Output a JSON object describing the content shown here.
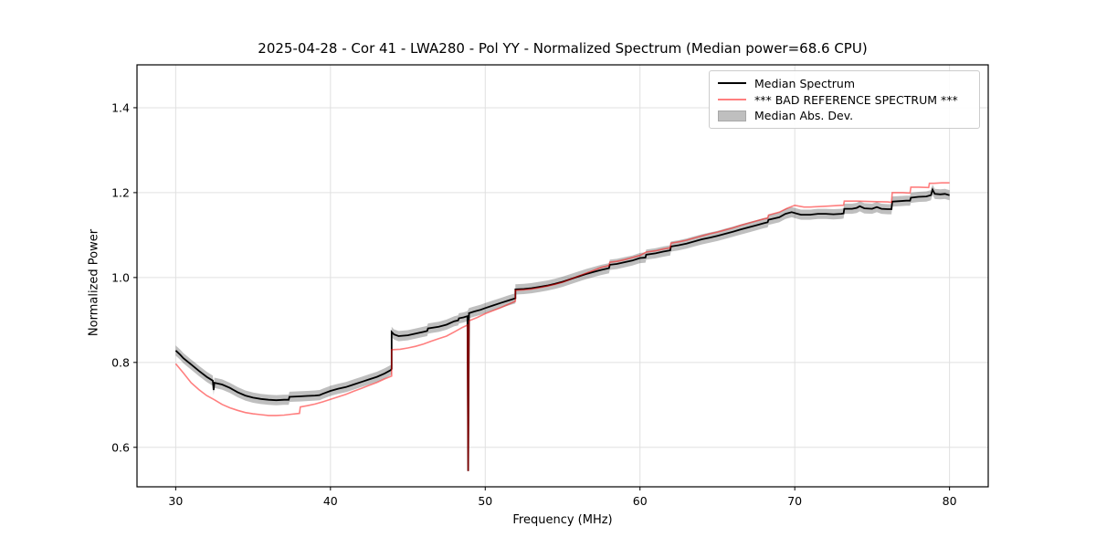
{
  "chart_data": {
    "type": "line",
    "title": "2025-04-28 - Cor 41 - LWA280 - Pol YY - Normalized Spectrum (Median power=68.6 CPU)",
    "xlabel": "Frequency (MHz)",
    "ylabel": "Normalized Power",
    "xlim": [
      27.5,
      82.5
    ],
    "ylim": [
      0.507,
      1.501
    ],
    "grid": true,
    "grid_color": "#e0e0e0",
    "spine_color": "#000000",
    "xticks": [
      {
        "value": 30,
        "label": "30"
      },
      {
        "value": 40,
        "label": "40"
      },
      {
        "value": 50,
        "label": "50"
      },
      {
        "value": 60,
        "label": "60"
      },
      {
        "value": 70,
        "label": "70"
      },
      {
        "value": 80,
        "label": "80"
      }
    ],
    "yticks": [
      {
        "value": 0.6,
        "label": "0.6"
      },
      {
        "value": 0.8,
        "label": "0.8"
      },
      {
        "value": 1.0,
        "label": "1.0"
      },
      {
        "value": 1.2,
        "label": "1.2"
      },
      {
        "value": 1.4,
        "label": "1.4"
      }
    ],
    "legend": {
      "position": "upper right",
      "entries": [
        {
          "label": "Median Spectrum",
          "swatch": "line",
          "color": "#000000"
        },
        {
          "label": "*** BAD REFERENCE SPECTRUM ***",
          "swatch": "line",
          "color": "rgba(255,0,0,0.5)"
        },
        {
          "label": "Median Abs. Dev.",
          "swatch": "patch",
          "color": "rgba(0,0,0,0.25)",
          "border_color": "#a8a8a8"
        }
      ]
    },
    "band": {
      "name": "Median Abs. Dev.",
      "follows": "Median Spectrum",
      "half_width": 0.012,
      "color": "#000000",
      "opacity": 0.25,
      "exclude_below": 0.6
    },
    "spike": {
      "frequency_mhz": 48.9,
      "min_value": 0.544
    },
    "series": [
      {
        "name": "Median Spectrum",
        "color": "#000000",
        "opacity": 1,
        "linewidth": 1.8,
        "points": [
          [
            30.0,
            0.828
          ],
          [
            30.3,
            0.818
          ],
          [
            30.5,
            0.81
          ],
          [
            31.0,
            0.795
          ],
          [
            31.5,
            0.78
          ],
          [
            32.0,
            0.766
          ],
          [
            32.4,
            0.757
          ],
          [
            32.45,
            0.735
          ],
          [
            32.5,
            0.752
          ],
          [
            33.0,
            0.748
          ],
          [
            33.5,
            0.74
          ],
          [
            34.0,
            0.73
          ],
          [
            34.5,
            0.722
          ],
          [
            35.0,
            0.717
          ],
          [
            35.5,
            0.714
          ],
          [
            36.0,
            0.712
          ],
          [
            36.5,
            0.711
          ],
          [
            37.0,
            0.712
          ],
          [
            37.3,
            0.712
          ],
          [
            37.35,
            0.719
          ],
          [
            38.0,
            0.72
          ],
          [
            38.5,
            0.721
          ],
          [
            39.0,
            0.722
          ],
          [
            39.3,
            0.723
          ],
          [
            39.5,
            0.726
          ],
          [
            40.0,
            0.733
          ],
          [
            40.5,
            0.738
          ],
          [
            41.0,
            0.742
          ],
          [
            41.5,
            0.748
          ],
          [
            42.0,
            0.754
          ],
          [
            42.5,
            0.76
          ],
          [
            43.0,
            0.766
          ],
          [
            43.5,
            0.774
          ],
          [
            43.9,
            0.782
          ],
          [
            43.95,
            0.785
          ],
          [
            43.95,
            0.872
          ],
          [
            44.1,
            0.866
          ],
          [
            44.4,
            0.862
          ],
          [
            45.0,
            0.864
          ],
          [
            45.5,
            0.868
          ],
          [
            46.0,
            0.872
          ],
          [
            46.25,
            0.874
          ],
          [
            46.3,
            0.88
          ],
          [
            47.0,
            0.884
          ],
          [
            47.5,
            0.889
          ],
          [
            48.0,
            0.897
          ],
          [
            48.25,
            0.899
          ],
          [
            48.3,
            0.904
          ],
          [
            48.6,
            0.906
          ],
          [
            48.85,
            0.909
          ],
          [
            48.9,
            0.544
          ],
          [
            48.95,
            0.916
          ],
          [
            49.3,
            0.92
          ],
          [
            49.7,
            0.924
          ],
          [
            50.0,
            0.928
          ],
          [
            50.5,
            0.934
          ],
          [
            51.0,
            0.94
          ],
          [
            51.5,
            0.946
          ],
          [
            51.95,
            0.951
          ],
          [
            51.95,
            0.972
          ],
          [
            52.5,
            0.973
          ],
          [
            53.0,
            0.975
          ],
          [
            53.5,
            0.978
          ],
          [
            54.0,
            0.981
          ],
          [
            54.5,
            0.985
          ],
          [
            55.0,
            0.99
          ],
          [
            55.5,
            0.996
          ],
          [
            56.0,
            1.002
          ],
          [
            56.5,
            1.008
          ],
          [
            57.0,
            1.013
          ],
          [
            57.5,
            1.018
          ],
          [
            58.0,
            1.022
          ],
          [
            58.05,
            1.03
          ],
          [
            58.5,
            1.032
          ],
          [
            59.0,
            1.036
          ],
          [
            59.5,
            1.04
          ],
          [
            60.0,
            1.046
          ],
          [
            60.35,
            1.047
          ],
          [
            60.4,
            1.054
          ],
          [
            61.0,
            1.057
          ],
          [
            61.5,
            1.061
          ],
          [
            61.95,
            1.064
          ],
          [
            62.0,
            1.073
          ],
          [
            62.5,
            1.076
          ],
          [
            63.0,
            1.08
          ],
          [
            63.5,
            1.085
          ],
          [
            64.0,
            1.09
          ],
          [
            64.5,
            1.094
          ],
          [
            65.0,
            1.098
          ],
          [
            65.5,
            1.103
          ],
          [
            66.0,
            1.108
          ],
          [
            66.5,
            1.113
          ],
          [
            67.0,
            1.118
          ],
          [
            67.5,
            1.123
          ],
          [
            68.0,
            1.128
          ],
          [
            68.25,
            1.13
          ],
          [
            68.3,
            1.136
          ],
          [
            69.0,
            1.142
          ],
          [
            69.4,
            1.15
          ],
          [
            69.8,
            1.154
          ],
          [
            70.1,
            1.151
          ],
          [
            70.4,
            1.148
          ],
          [
            71.0,
            1.148
          ],
          [
            71.5,
            1.15
          ],
          [
            72.0,
            1.15
          ],
          [
            72.5,
            1.149
          ],
          [
            73.0,
            1.15
          ],
          [
            73.15,
            1.151
          ],
          [
            73.2,
            1.162
          ],
          [
            73.7,
            1.162
          ],
          [
            74.0,
            1.164
          ],
          [
            74.2,
            1.168
          ],
          [
            74.5,
            1.163
          ],
          [
            75.0,
            1.162
          ],
          [
            75.3,
            1.166
          ],
          [
            75.6,
            1.162
          ],
          [
            76.0,
            1.161
          ],
          [
            76.25,
            1.161
          ],
          [
            76.3,
            1.179
          ],
          [
            76.8,
            1.18
          ],
          [
            77.2,
            1.181
          ],
          [
            77.45,
            1.181
          ],
          [
            77.5,
            1.188
          ],
          [
            78.0,
            1.19
          ],
          [
            78.5,
            1.191
          ],
          [
            78.8,
            1.194
          ],
          [
            78.9,
            1.207
          ],
          [
            79.05,
            1.197
          ],
          [
            79.4,
            1.196
          ],
          [
            79.7,
            1.197
          ],
          [
            80.0,
            1.194
          ]
        ]
      },
      {
        "name": "*** BAD REFERENCE SPECTRUM ***",
        "color": "#ff0000",
        "opacity": 0.5,
        "linewidth": 1.6,
        "points": [
          [
            30.0,
            0.797
          ],
          [
            30.5,
            0.775
          ],
          [
            31.0,
            0.752
          ],
          [
            31.5,
            0.736
          ],
          [
            32.0,
            0.722
          ],
          [
            32.5,
            0.712
          ],
          [
            33.0,
            0.701
          ],
          [
            33.5,
            0.693
          ],
          [
            34.0,
            0.687
          ],
          [
            34.5,
            0.682
          ],
          [
            35.0,
            0.679
          ],
          [
            35.5,
            0.677
          ],
          [
            36.0,
            0.675
          ],
          [
            36.5,
            0.675
          ],
          [
            37.0,
            0.676
          ],
          [
            37.5,
            0.678
          ],
          [
            38.0,
            0.68
          ],
          [
            38.05,
            0.695
          ],
          [
            38.5,
            0.698
          ],
          [
            39.0,
            0.702
          ],
          [
            39.5,
            0.707
          ],
          [
            40.0,
            0.713
          ],
          [
            40.5,
            0.719
          ],
          [
            41.0,
            0.725
          ],
          [
            41.5,
            0.732
          ],
          [
            42.0,
            0.739
          ],
          [
            42.5,
            0.746
          ],
          [
            43.0,
            0.753
          ],
          [
            43.5,
            0.761
          ],
          [
            43.95,
            0.768
          ],
          [
            43.95,
            0.83
          ],
          [
            44.5,
            0.831
          ],
          [
            45.0,
            0.834
          ],
          [
            45.5,
            0.838
          ],
          [
            46.0,
            0.843
          ],
          [
            46.5,
            0.85
          ],
          [
            47.0,
            0.856
          ],
          [
            47.5,
            0.862
          ],
          [
            48.0,
            0.872
          ],
          [
            48.5,
            0.882
          ],
          [
            48.85,
            0.888
          ],
          [
            48.9,
            0.544
          ],
          [
            48.95,
            0.898
          ],
          [
            49.5,
            0.906
          ],
          [
            50.0,
            0.915
          ],
          [
            50.5,
            0.922
          ],
          [
            51.0,
            0.929
          ],
          [
            51.5,
            0.937
          ],
          [
            51.95,
            0.944
          ],
          [
            51.95,
            0.97
          ],
          [
            52.5,
            0.971
          ],
          [
            53.0,
            0.973
          ],
          [
            53.5,
            0.976
          ],
          [
            54.0,
            0.98
          ],
          [
            54.5,
            0.984
          ],
          [
            55.0,
            0.989
          ],
          [
            55.5,
            0.996
          ],
          [
            56.0,
            1.003
          ],
          [
            56.5,
            1.01
          ],
          [
            57.0,
            1.017
          ],
          [
            57.5,
            1.024
          ],
          [
            58.0,
            1.028
          ],
          [
            58.05,
            1.036
          ],
          [
            58.5,
            1.038
          ],
          [
            59.0,
            1.042
          ],
          [
            59.5,
            1.047
          ],
          [
            60.0,
            1.052
          ],
          [
            60.4,
            1.06
          ],
          [
            61.0,
            1.063
          ],
          [
            61.5,
            1.067
          ],
          [
            61.95,
            1.07
          ],
          [
            62.0,
            1.081
          ],
          [
            62.5,
            1.084
          ],
          [
            63.0,
            1.088
          ],
          [
            63.5,
            1.093
          ],
          [
            64.0,
            1.098
          ],
          [
            64.5,
            1.103
          ],
          [
            65.0,
            1.107
          ],
          [
            65.5,
            1.112
          ],
          [
            66.0,
            1.117
          ],
          [
            66.5,
            1.123
          ],
          [
            67.0,
            1.128
          ],
          [
            67.5,
            1.133
          ],
          [
            68.0,
            1.138
          ],
          [
            68.25,
            1.14
          ],
          [
            68.3,
            1.147
          ],
          [
            69.0,
            1.154
          ],
          [
            69.5,
            1.163
          ],
          [
            70.0,
            1.17
          ],
          [
            70.3,
            1.168
          ],
          [
            70.6,
            1.166
          ],
          [
            71.0,
            1.166
          ],
          [
            72.0,
            1.168
          ],
          [
            73.0,
            1.17
          ],
          [
            73.15,
            1.17
          ],
          [
            73.2,
            1.18
          ],
          [
            74.0,
            1.18
          ],
          [
            75.0,
            1.179
          ],
          [
            76.0,
            1.178
          ],
          [
            76.25,
            1.177
          ],
          [
            76.3,
            1.2
          ],
          [
            77.0,
            1.2
          ],
          [
            77.45,
            1.199
          ],
          [
            77.5,
            1.213
          ],
          [
            78.0,
            1.213
          ],
          [
            78.65,
            1.212
          ],
          [
            78.7,
            1.222
          ],
          [
            79.0,
            1.222
          ],
          [
            79.5,
            1.223
          ],
          [
            80.0,
            1.223
          ]
        ]
      }
    ]
  }
}
